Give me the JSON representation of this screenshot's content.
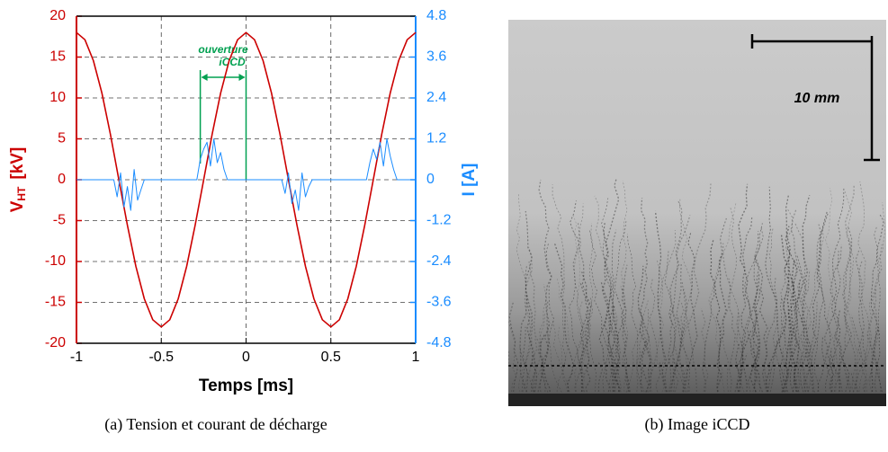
{
  "chart_data": {
    "type": "line",
    "caption": "(a) Tension et courant de décharge",
    "xlabel": "Temps  [ms]",
    "ylabel": {
      "main": "V",
      "sub": "HT",
      "unit": "[kV]"
    },
    "y2label": "I  [A]",
    "annotation": {
      "lines": [
        "ouverture",
        "iCCD"
      ],
      "window": [
        -0.27,
        0
      ],
      "color": "#00a050"
    },
    "xlim": [
      -1,
      1
    ],
    "xticks": [
      -1,
      -0.5,
      0,
      0.5,
      1
    ],
    "ylim": [
      -20,
      20
    ],
    "yticks": [
      -20,
      -15,
      -10,
      -5,
      0,
      5,
      10,
      15,
      20
    ],
    "y2lim": [
      -4.8,
      4.8
    ],
    "y2ticks": [
      -4.8,
      -3.6,
      -2.4,
      -1.2,
      0,
      1.2,
      2.4,
      3.6,
      4.8
    ],
    "grid": true,
    "series": [
      {
        "color": "#cc0000",
        "axis": "y",
        "x": [
          -1,
          -0.95,
          -0.9,
          -0.85,
          -0.8,
          -0.75,
          -0.7,
          -0.65,
          -0.6,
          -0.55,
          -0.5,
          -0.45,
          -0.4,
          -0.35,
          -0.3,
          -0.25,
          -0.2,
          -0.15,
          -0.1,
          -0.05,
          0,
          0.05,
          0.1,
          0.15,
          0.2,
          0.25,
          0.3,
          0.35,
          0.4,
          0.45,
          0.5,
          0.55,
          0.6,
          0.65,
          0.7,
          0.75,
          0.8,
          0.85,
          0.9,
          0.95,
          1
        ],
        "values": [
          18,
          17.12,
          14.56,
          10.58,
          5.56,
          0,
          -5.56,
          -10.58,
          -14.56,
          -17.12,
          -18,
          -17.12,
          -14.56,
          -10.58,
          -5.56,
          0,
          5.56,
          10.58,
          14.56,
          17.12,
          18,
          17.12,
          14.56,
          10.58,
          5.56,
          0,
          -5.56,
          -10.58,
          -14.56,
          -17.12,
          -18,
          -17.12,
          -14.56,
          -10.58,
          -5.56,
          0,
          5.56,
          10.58,
          14.56,
          17.12,
          18
        ]
      },
      {
        "color": "#1a8cff",
        "axis": "y2",
        "x": [
          -1,
          -0.78,
          -0.76,
          -0.74,
          -0.72,
          -0.7,
          -0.68,
          -0.66,
          -0.64,
          -0.62,
          -0.6,
          -0.29,
          -0.27,
          -0.25,
          -0.23,
          -0.21,
          -0.19,
          -0.17,
          -0.15,
          -0.13,
          -0.11,
          0.21,
          0.23,
          0.25,
          0.27,
          0.29,
          0.31,
          0.33,
          0.35,
          0.37,
          0.39,
          0.71,
          0.73,
          0.75,
          0.77,
          0.79,
          0.81,
          0.83,
          0.85,
          0.87,
          0.89,
          1
        ],
        "values": [
          0,
          0,
          -0.5,
          0.2,
          -0.8,
          -0.2,
          -0.9,
          0.3,
          -0.6,
          -0.3,
          0,
          0,
          0.6,
          0.9,
          1.1,
          0.4,
          1.2,
          0.5,
          0.8,
          0.3,
          0,
          0,
          -0.4,
          0.2,
          -0.7,
          -0.3,
          -0.9,
          0.2,
          -0.5,
          -0.2,
          0,
          0,
          0.5,
          0.9,
          0.6,
          1.1,
          0.4,
          1.2,
          0.7,
          0.3,
          0,
          0
        ]
      }
    ]
  },
  "image_panel": {
    "caption": "(b) Image iCCD",
    "scale_label": "10 mm"
  }
}
